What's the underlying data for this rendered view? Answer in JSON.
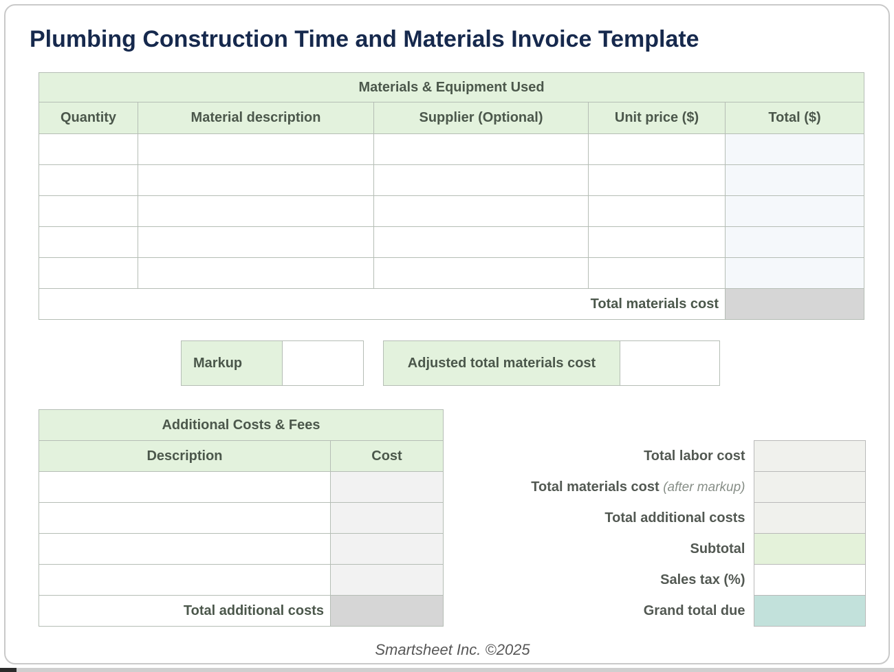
{
  "page": {
    "title": "Plumbing Construction Time and Materials Invoice Template",
    "footer": "Smartsheet Inc. ©2025"
  },
  "colors": {
    "title_navy": "#16294d",
    "band_green": "#e3f2dd",
    "band_text": "#4b574b",
    "table_border": "#b5bdb5",
    "computed_gray": "#d6d6d6",
    "cost_column_gray": "#f2f2f2",
    "total_column_blue": "#f5f8fb",
    "summary_plain": "#f0f1ed",
    "summary_subtotal": "#e4f2da",
    "summary_sales_tax": "#ffffff",
    "summary_grand_total": "#c2e1db"
  },
  "materials_table": {
    "title": "Materials & Equipment Used",
    "columns": [
      "Quantity",
      "Material description",
      "Supplier (Optional)",
      "Unit price ($)",
      "Total ($)"
    ],
    "rows": [
      [
        "",
        "",
        "",
        "",
        ""
      ],
      [
        "",
        "",
        "",
        "",
        ""
      ],
      [
        "",
        "",
        "",
        "",
        ""
      ],
      [
        "",
        "",
        "",
        "",
        ""
      ],
      [
        "",
        "",
        "",
        "",
        ""
      ]
    ],
    "total_label": "Total materials cost",
    "total_value": ""
  },
  "markup_row": {
    "markup_label": "Markup",
    "markup_value": "",
    "adjusted_label": "Adjusted total materials cost",
    "adjusted_value": ""
  },
  "additional_table": {
    "title": "Additional Costs & Fees",
    "columns": [
      "Description",
      "Cost"
    ],
    "rows": [
      [
        "",
        ""
      ],
      [
        "",
        ""
      ],
      [
        "",
        ""
      ],
      [
        "",
        ""
      ]
    ],
    "total_label": "Total additional costs",
    "total_value": ""
  },
  "summary": {
    "labor": {
      "label": "Total labor cost",
      "value": ""
    },
    "materials_after_markup": {
      "label": "Total materials cost",
      "note": "(after markup)",
      "value": ""
    },
    "additional": {
      "label": "Total additional costs",
      "value": ""
    },
    "subtotal": {
      "label": "Subtotal",
      "value": ""
    },
    "sales_tax": {
      "label": "Sales tax (%)",
      "value": ""
    },
    "grand_total": {
      "label": "Grand total due",
      "value": ""
    }
  }
}
